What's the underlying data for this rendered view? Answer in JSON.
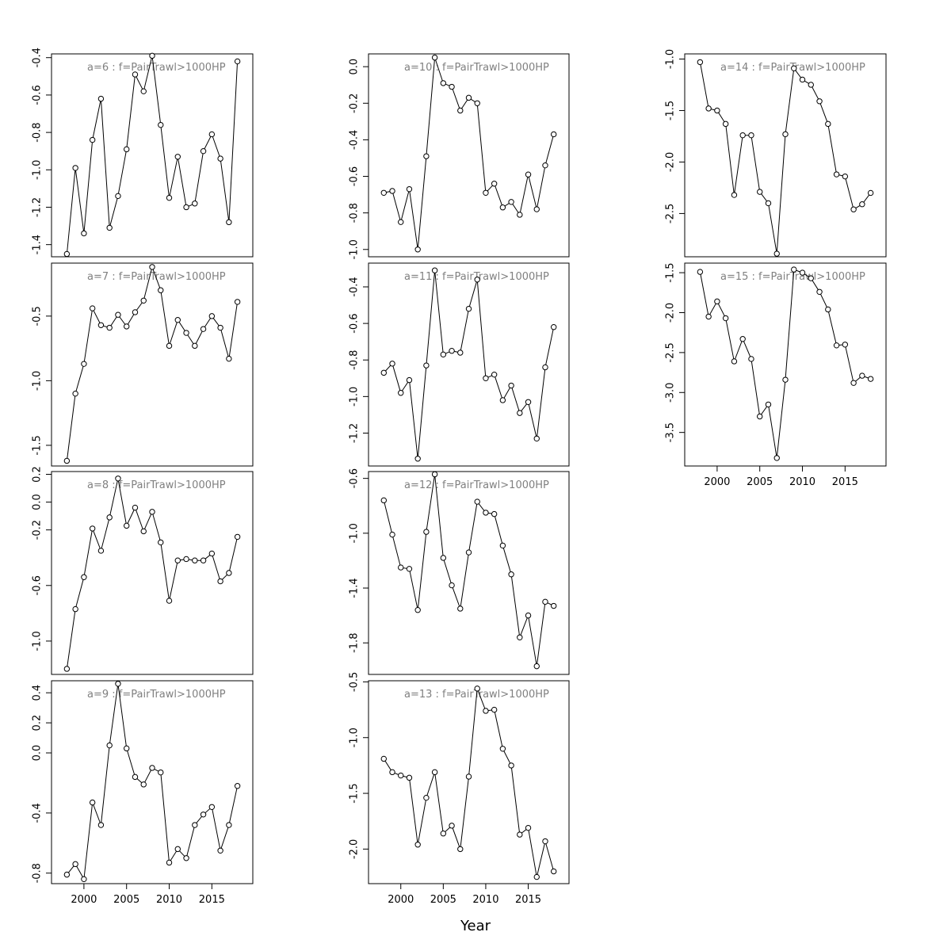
{
  "figure": {
    "xlabel": "Year",
    "title_color": "#808080",
    "line_color": "#000000"
  },
  "chart_data": [
    {
      "type": "line",
      "title": "a=6 : f=PairTrawl>1000HP",
      "xlim": [
        1996.2,
        2019.8
      ],
      "ylim": [
        -1.465,
        -0.38
      ],
      "yticks": [
        "-0.4",
        "-0.6",
        "-0.8",
        "-1.0",
        "-1.2",
        "-1.4"
      ],
      "xticks": [],
      "x": [
        1998,
        1999,
        2000,
        2001,
        2002,
        2003,
        2004,
        2005,
        2006,
        2007,
        2008,
        2009,
        2010,
        2011,
        2012,
        2013,
        2014,
        2015,
        2016,
        2017,
        2018
      ],
      "y": [
        -1.45,
        -0.99,
        -1.34,
        -0.84,
        -0.62,
        -1.31,
        -1.14,
        -0.89,
        -0.49,
        -0.58,
        -0.39,
        -0.76,
        -1.15,
        -0.93,
        -1.2,
        -1.18,
        -0.9,
        -0.81,
        -0.94,
        -1.28,
        -0.42
      ],
      "y_line_note": ""
    },
    {
      "type": "line",
      "title": "a=10 : f=PairTrawl>1000HP",
      "xlim": [
        1996.2,
        2019.8
      ],
      "ylim": [
        -1.04,
        0.07
      ],
      "yticks": [
        "0.0",
        "-0.2",
        "-0.4",
        "-0.6",
        "-0.8",
        "-1.0"
      ],
      "xticks": [],
      "x": [
        1998,
        1999,
        2000,
        2001,
        2002,
        2003,
        2004,
        2005,
        2006,
        2007,
        2008,
        2009,
        2010,
        2011,
        2012,
        2013,
        2014,
        2015,
        2016,
        2017,
        2018
      ],
      "y": [
        -0.69,
        -0.68,
        -0.85,
        -0.67,
        -1.0,
        -0.49,
        0.05,
        -0.09,
        -0.11,
        -0.24,
        -0.17,
        -0.2,
        -0.69,
        -0.64,
        -0.77,
        -0.74,
        -0.81,
        -0.59,
        -0.78,
        -0.54,
        -0.37
      ]
    },
    {
      "type": "line",
      "title": "a=14 : f=PairTrawl>1000HP",
      "xlim": [
        1996.2,
        2019.8
      ],
      "ylim": [
        -2.92,
        -0.95
      ],
      "yticks": [
        "-1.0",
        "-1.5",
        "-2.0",
        "-2.5"
      ],
      "xticks": [],
      "x": [
        1998,
        1999,
        2000,
        2001,
        2002,
        2003,
        2004,
        2005,
        2006,
        2007,
        2008,
        2009,
        2010,
        2011,
        2012,
        2013,
        2014,
        2015,
        2016,
        2017,
        2018
      ],
      "y": [
        -1.03,
        -1.48,
        -1.5,
        -1.63,
        -2.32,
        -1.74,
        -1.74,
        -2.29,
        -2.4,
        -2.89,
        -1.73,
        -1.09,
        -1.2,
        -1.25,
        -1.41,
        -1.63,
        -2.12,
        -2.14,
        -2.46,
        -2.41,
        -2.3
      ]
    },
    {
      "type": "line",
      "title": "a=7 : f=PairTrawl>1000HP",
      "xlim": [
        1996.2,
        2019.8
      ],
      "ylim": [
        -1.66,
        -0.09
      ],
      "yticks": [
        "-0.5",
        "-1.0",
        "-1.5"
      ],
      "xticks": [],
      "x": [
        1998,
        1999,
        2000,
        2001,
        2002,
        2003,
        2004,
        2005,
        2006,
        2007,
        2008,
        2009,
        2010,
        2011,
        2012,
        2013,
        2014,
        2015,
        2016,
        2017,
        2018
      ],
      "y": [
        -1.62,
        -1.1,
        -0.87,
        -0.44,
        -0.57,
        -0.59,
        -0.49,
        -0.58,
        -0.47,
        -0.38,
        -0.12,
        -0.3,
        -0.73,
        -0.53,
        -0.63,
        -0.73,
        -0.6,
        -0.5,
        -0.59,
        -0.83,
        -0.39
      ]
    },
    {
      "type": "line",
      "title": "a=11 : f=PairTrawl>1000HP",
      "xlim": [
        1996.2,
        2019.8
      ],
      "ylim": [
        -1.38,
        -0.27
      ],
      "yticks": [
        "-0.4",
        "-0.6",
        "-0.8",
        "-1.0",
        "-1.2"
      ],
      "xticks": [],
      "x": [
        1998,
        1999,
        2000,
        2001,
        2002,
        2003,
        2004,
        2005,
        2006,
        2007,
        2008,
        2009,
        2010,
        2011,
        2012,
        2013,
        2014,
        2015,
        2016,
        2017,
        2018
      ],
      "y": [
        -0.87,
        -0.82,
        -0.98,
        -0.91,
        -1.34,
        -0.83,
        -0.31,
        -0.77,
        -0.75,
        -0.76,
        -0.52,
        -0.36,
        -0.9,
        -0.88,
        -1.02,
        -0.94,
        -1.09,
        -1.03,
        -1.23,
        -0.84,
        -0.62
      ]
    },
    {
      "type": "line",
      "title": "a=15 : f=PairTrawl>1000HP",
      "xlim": [
        1996.2,
        2019.8
      ],
      "ylim": [
        -3.92,
        -1.38
      ],
      "yticks": [
        "-1.5",
        "-2.0",
        "-2.5",
        "-3.0",
        "-3.5"
      ],
      "xticks": [
        "2000",
        "2005",
        "2010",
        "2015"
      ],
      "x": [
        1998,
        1999,
        2000,
        2001,
        2002,
        2003,
        2004,
        2005,
        2006,
        2007,
        2008,
        2009,
        2010,
        2011,
        2012,
        2013,
        2014,
        2015,
        2016,
        2017,
        2018
      ],
      "y": [
        -1.49,
        -2.05,
        -1.86,
        -2.07,
        -2.61,
        -2.33,
        -2.58,
        -3.3,
        -3.15,
        -3.82,
        -2.84,
        -1.46,
        -1.5,
        -1.57,
        -1.74,
        -1.96,
        -2.41,
        -2.4,
        -2.88,
        -2.79,
        -2.83
      ]
    },
    {
      "type": "line",
      "title": "a=8 : f=PairTrawl>1000HP",
      "xlim": [
        1996.2,
        2019.8
      ],
      "ylim": [
        -1.24,
        0.22
      ],
      "yticks": [
        "0.2",
        "0.0",
        "-0.2",
        "-0.6",
        "-1.0"
      ],
      "xticks": [],
      "x": [
        1998,
        1999,
        2000,
        2001,
        2002,
        2003,
        2004,
        2005,
        2006,
        2007,
        2008,
        2009,
        2010,
        2011,
        2012,
        2013,
        2014,
        2015,
        2016,
        2017,
        2018
      ],
      "y": [
        -1.2,
        -0.77,
        -0.54,
        -0.19,
        -0.35,
        -0.11,
        0.17,
        -0.17,
        -0.04,
        -0.21,
        -0.07,
        -0.29,
        -0.71,
        -0.42,
        -0.41,
        -0.42,
        -0.42,
        -0.37,
        -0.57,
        -0.51,
        -0.25
      ]
    },
    {
      "type": "line",
      "title": "a=12 : f=PairTrawl>1000HP",
      "xlim": [
        1996.2,
        2019.8
      ],
      "ylim": [
        -2.03,
        -0.55
      ],
      "yticks": [
        "-0.6",
        "-1.0",
        "-1.4",
        "-1.8"
      ],
      "xticks": [],
      "x": [
        1998,
        1999,
        2000,
        2001,
        2002,
        2003,
        2004,
        2005,
        2006,
        2007,
        2008,
        2009,
        2010,
        2011,
        2012,
        2013,
        2014,
        2015,
        2016,
        2017,
        2018
      ],
      "y": [
        -0.76,
        -1.01,
        -1.25,
        -1.26,
        -1.56,
        -0.99,
        -0.57,
        -1.18,
        -1.38,
        -1.55,
        -1.14,
        -0.77,
        -0.85,
        -0.86,
        -1.09,
        -1.3,
        -1.76,
        -1.6,
        -1.97,
        -1.5,
        -1.53
      ]
    },
    {
      "type": "line",
      "title": "a=9 : f=PairTrawl>1000HP",
      "xlim": [
        1996.2,
        2019.8
      ],
      "ylim": [
        -0.87,
        0.48
      ],
      "yticks": [
        "0.4",
        "0.2",
        "0.0",
        "-0.4",
        "-0.8"
      ],
      "xticks": [
        "2000",
        "2005",
        "2010",
        "2015"
      ],
      "x": [
        1998,
        1999,
        2000,
        2001,
        2002,
        2003,
        2004,
        2005,
        2006,
        2007,
        2008,
        2009,
        2010,
        2011,
        2012,
        2013,
        2014,
        2015,
        2016,
        2017,
        2018
      ],
      "y": [
        -0.81,
        -0.74,
        -0.84,
        -0.33,
        -0.48,
        0.05,
        0.46,
        0.03,
        -0.16,
        -0.21,
        -0.1,
        -0.13,
        -0.73,
        -0.64,
        -0.7,
        -0.48,
        -0.41,
        -0.36,
        -0.65,
        -0.48,
        -0.22
      ]
    },
    {
      "type": "line",
      "title": "a=13 : f=PairTrawl>1000HP",
      "xlim": [
        1996.2,
        2019.8
      ],
      "ylim": [
        -2.31,
        -0.49
      ],
      "yticks": [
        "-0.5",
        "-1.0",
        "-1.5",
        "-2.0"
      ],
      "xticks": [
        "2000",
        "2005",
        "2010",
        "2015"
      ],
      "x": [
        1998,
        1999,
        2000,
        2001,
        2002,
        2003,
        2004,
        2005,
        2006,
        2007,
        2008,
        2009,
        2010,
        2011,
        2012,
        2013,
        2014,
        2015,
        2016,
        2017,
        2018
      ],
      "y": [
        -1.19,
        -1.31,
        -1.34,
        -1.36,
        -1.96,
        -1.54,
        -1.31,
        -1.86,
        -1.79,
        -2.0,
        -1.35,
        -0.56,
        -0.76,
        -0.75,
        -1.1,
        -1.25,
        -1.87,
        -1.81,
        -2.25,
        -1.93,
        -2.2
      ]
    }
  ]
}
